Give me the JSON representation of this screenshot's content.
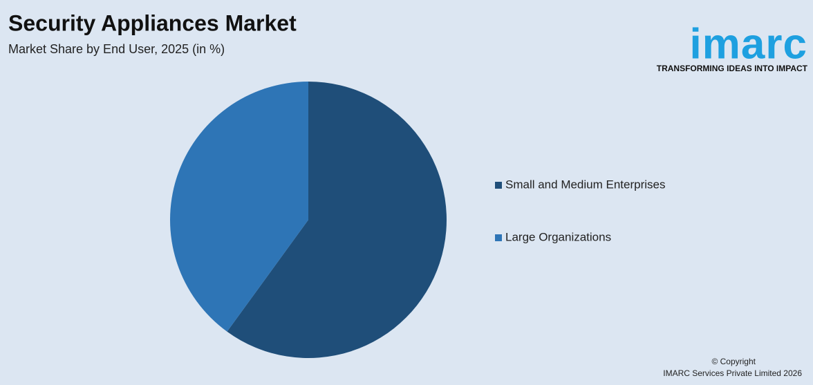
{
  "chart_data": {
    "type": "pie",
    "title": "Security Appliances Market",
    "subtitle": "Market Share by End User, 2025 (in %)",
    "categories": [
      "Small and Medium Enterprises",
      "Large Organizations"
    ],
    "values": [
      60,
      40
    ],
    "colors": [
      "#1f4e79",
      "#2e75b6"
    ]
  },
  "logo": {
    "name": "imarc",
    "tagline": "TRANSFORMING IDEAS INTO IMPACT"
  },
  "footer": {
    "copyright": "© Copyright",
    "company": "IMARC Services Private Limited 2026"
  }
}
